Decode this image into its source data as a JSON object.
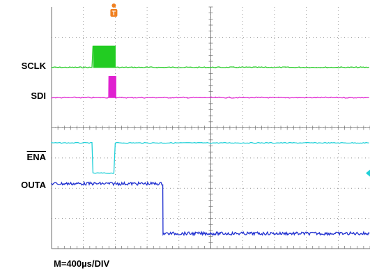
{
  "scope": {
    "timebase": "M=400µs/DIV",
    "divisions_x": 10,
    "divisions_y": 8,
    "trigger_marker": "T",
    "colors": {
      "grid": "#6e6e6e",
      "sclk": "#22cc22",
      "sdi": "#e020d0",
      "ena": "#20d0d8",
      "outa": "#2030d0",
      "trigger": "#f08020"
    }
  },
  "chart_data": {
    "type": "line",
    "title": "",
    "xlabel": "M=400µs/DIV",
    "ylabel": "",
    "x_units": "divisions",
    "series": [
      {
        "name": "SCLK",
        "overline": false,
        "color": "#22cc22",
        "baseline_div": 6.0,
        "burst": {
          "start_div": 1.3,
          "end_div": 2.0,
          "pulse_height_div": 0.7
        }
      },
      {
        "name": "SDI",
        "overline": false,
        "color": "#e020d0",
        "baseline_div": 5.0,
        "burst": {
          "start_div": 1.8,
          "end_div": 2.0,
          "pulse_height_div": 0.7
        }
      },
      {
        "name": "ENA",
        "overline": true,
        "color": "#20d0d8",
        "baseline_div": 3.5,
        "low": {
          "start_div": 1.3,
          "end_div": 2.0,
          "low_div": 2.5
        }
      },
      {
        "name": "OUTA",
        "overline": false,
        "color": "#2030d0",
        "baseline_div": 2.15,
        "step": {
          "at_div": 3.5,
          "to_div": 0.5
        }
      }
    ]
  }
}
